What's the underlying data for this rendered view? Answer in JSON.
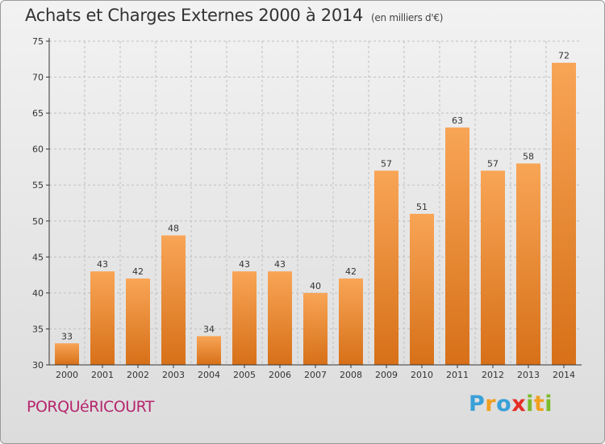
{
  "commune": "PORQUéRICOURT",
  "logo": {
    "letters": [
      "P",
      "r",
      "o",
      "x",
      "i",
      "t",
      "i"
    ],
    "colors": [
      "#3aa0d8",
      "#f1a021",
      "#3aa0d8",
      "#e52d27",
      "#7bbb2b",
      "#f1a021",
      "#7bbb2b"
    ]
  },
  "colors": {
    "bar_light": "#f8a556",
    "bar_dark": "#d77018",
    "grid": "#bfbfbf",
    "axis": "#333333"
  },
  "chart_data": {
    "type": "bar",
    "title": "Achats et Charges Externes 2000 à 2014",
    "unit_label": "(en milliers d'€)",
    "categories": [
      "2000",
      "2001",
      "2002",
      "2003",
      "2004",
      "2005",
      "2006",
      "2007",
      "2008",
      "2009",
      "2010",
      "2011",
      "2012",
      "2013",
      "2014"
    ],
    "values": [
      33,
      43,
      42,
      48,
      34,
      43,
      43,
      40,
      42,
      57,
      51,
      63,
      57,
      58,
      72
    ],
    "ylim": [
      30,
      75
    ],
    "yticks": [
      30,
      35,
      40,
      45,
      50,
      55,
      60,
      65,
      70,
      75
    ],
    "xlabel": "",
    "ylabel": "",
    "grid": true
  }
}
